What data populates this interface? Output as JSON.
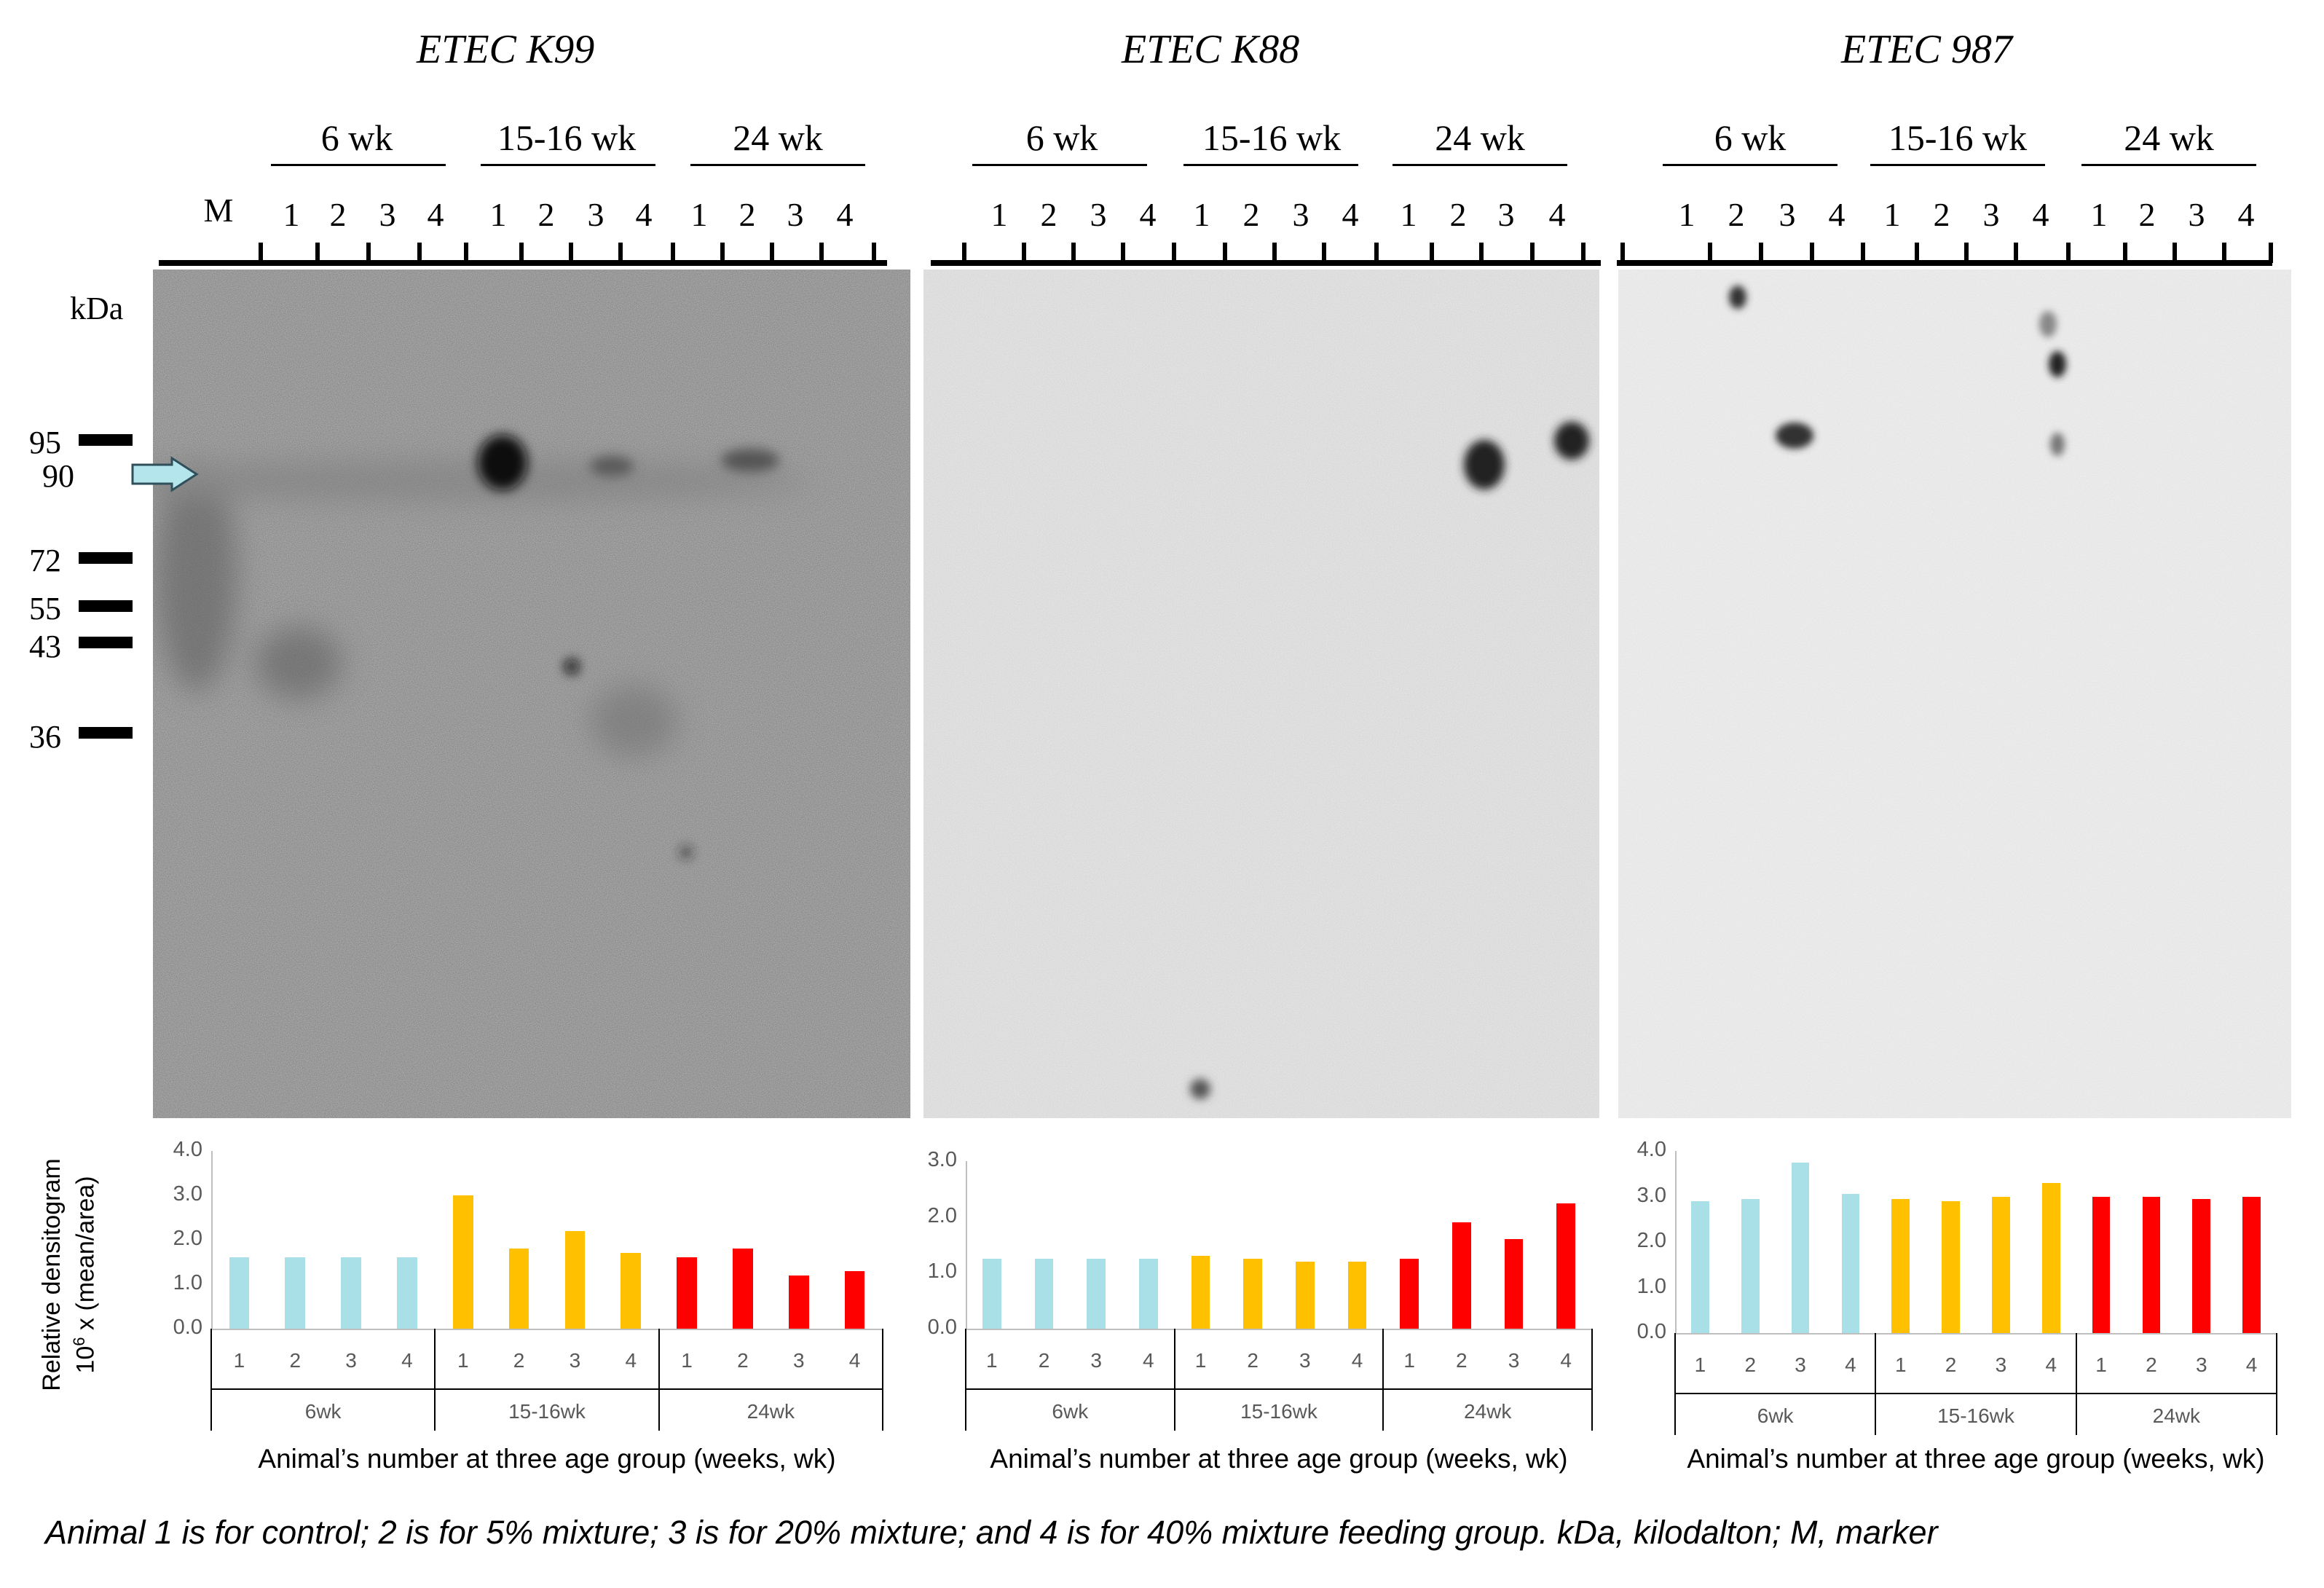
{
  "panels": [
    {
      "title": "ETEC K99",
      "groups": [
        "6 wk",
        "15-16 wk",
        "24 wk"
      ],
      "marker_lane": "M",
      "lanes": [
        "1",
        "2",
        "3",
        "4",
        "1",
        "2",
        "3",
        "4",
        "1",
        "2",
        "3",
        "4"
      ],
      "blot_shade": "#b9b9b9",
      "chart_data": {
        "type": "bar",
        "categories": [
          "1",
          "2",
          "3",
          "4",
          "1",
          "2",
          "3",
          "4",
          "1",
          "2",
          "3",
          "4"
        ],
        "groups": [
          "6wk",
          "15-16wk",
          "24wk"
        ],
        "values": [
          1.6,
          1.6,
          1.6,
          1.6,
          3.0,
          1.8,
          2.2,
          1.7,
          1.6,
          1.8,
          1.2,
          1.3
        ],
        "ylim": [
          0,
          4
        ],
        "yticks": [
          "0.0",
          "1.0",
          "2.0",
          "3.0",
          "4.0"
        ],
        "xlabel": "Animal’s number at three age group (weeks, wk)"
      }
    },
    {
      "title": "ETEC K88",
      "groups": [
        "6 wk",
        "15-16 wk",
        "24 wk"
      ],
      "marker_lane": "",
      "lanes": [
        "1",
        "2",
        "3",
        "4",
        "1",
        "2",
        "3",
        "4",
        "1",
        "2",
        "3",
        "4"
      ],
      "blot_shade": "#ececec",
      "chart_data": {
        "type": "bar",
        "categories": [
          "1",
          "2",
          "3",
          "4",
          "1",
          "2",
          "3",
          "4",
          "1",
          "2",
          "3",
          "4"
        ],
        "groups": [
          "6wk",
          "15-16wk",
          "24wk"
        ],
        "values": [
          1.25,
          1.25,
          1.25,
          1.25,
          1.3,
          1.25,
          1.2,
          1.2,
          1.25,
          1.9,
          1.6,
          2.25
        ],
        "ylim": [
          0,
          3
        ],
        "yticks": [
          "0.0",
          "1.0",
          "2.0",
          "3.0"
        ],
        "xlabel": "Animal’s number at three age group (weeks, wk)"
      }
    },
    {
      "title": "ETEC 987",
      "groups": [
        "6 wk",
        "15-16 wk",
        "24 wk"
      ],
      "marker_lane": "",
      "lanes": [
        "1",
        "2",
        "3",
        "4",
        "1",
        "2",
        "3",
        "4",
        "1",
        "2",
        "3",
        "4"
      ],
      "blot_shade": "#f2f2f2",
      "chart_data": {
        "type": "bar",
        "categories": [
          "1",
          "2",
          "3",
          "4",
          "1",
          "2",
          "3",
          "4",
          "1",
          "2",
          "3",
          "4"
        ],
        "groups": [
          "6wk",
          "15-16wk",
          "24wk"
        ],
        "values": [
          2.9,
          2.95,
          3.75,
          3.05,
          2.95,
          2.9,
          3.0,
          3.3,
          3.0,
          3.0,
          2.95,
          3.0
        ],
        "ylim": [
          0,
          4
        ],
        "yticks": [
          "0.0",
          "1.0",
          "2.0",
          "3.0",
          "4.0"
        ],
        "xlabel": "Animal’s number at three age group (weeks, wk)"
      }
    }
  ],
  "molecular_weight": {
    "unit_label": "kDa",
    "markers": [
      "95",
      "90",
      "72",
      "55",
      "43",
      "36"
    ]
  },
  "ylabel": "Relative densitogram",
  "ylabel_exp_prefix": "10",
  "ylabel_exp_sup": "6",
  "ylabel_exp_suffix": " x (mean/area)",
  "group_colors": [
    "#a9dfe6",
    "#ffc000",
    "#ff0000"
  ],
  "caption": "Animal 1 is for control; 2 is for 5% mixture; 3 is for 20% mixture; and 4 is for 40% mixture feeding group. kDa, kilodalton; M, marker"
}
